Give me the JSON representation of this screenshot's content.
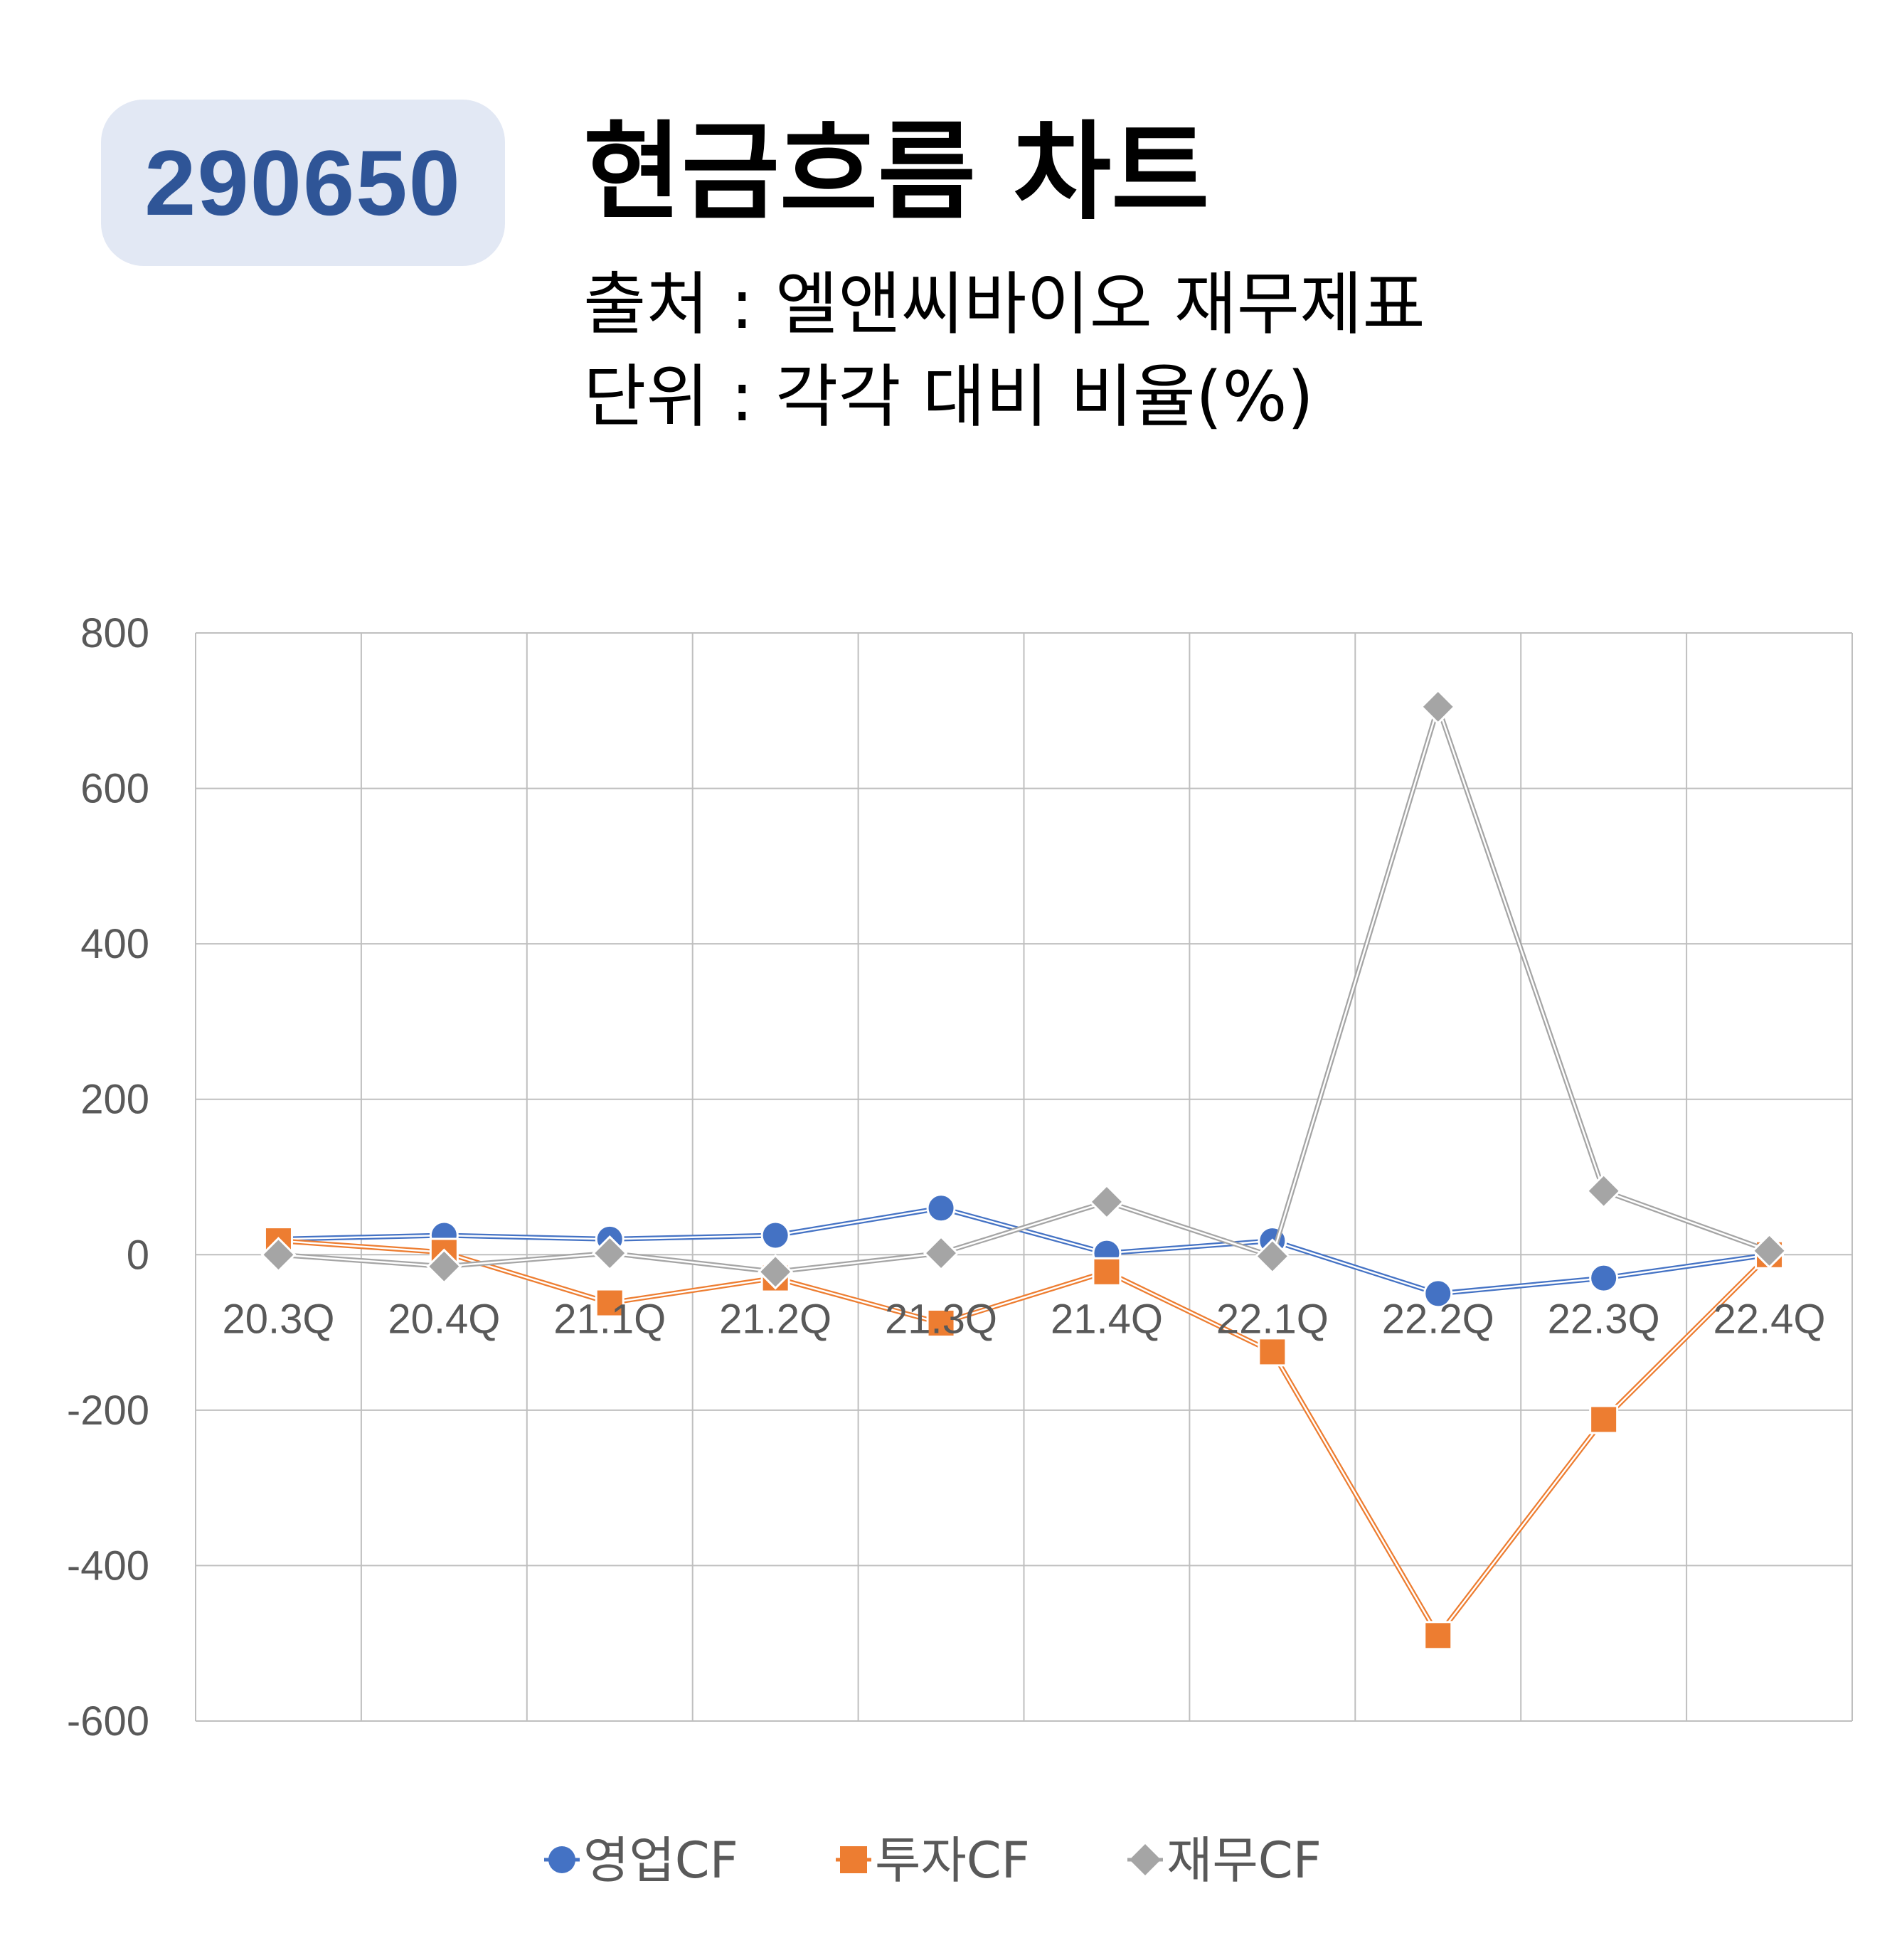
{
  "badge": {
    "code": "290650"
  },
  "header": {
    "title": "현금흐름 차트",
    "source": "출처 : 엘앤씨바이오 재무제표",
    "unit": "단위 : 각각 대비 비율(%)"
  },
  "colors": {
    "op": "#4472c4",
    "inv": "#ed7d31",
    "fin": "#a5a5a5",
    "grid": "#bfbfbf"
  },
  "chart_data": {
    "type": "line",
    "title": "현금흐름 차트",
    "categories": [
      "20.3Q",
      "20.4Q",
      "21.1Q",
      "21.2Q",
      "21.3Q",
      "21.4Q",
      "22.1Q",
      "22.2Q",
      "22.3Q",
      "22.4Q"
    ],
    "ylim": [
      -600,
      800
    ],
    "yticks": [
      800,
      600,
      400,
      200,
      0,
      -200,
      -400,
      -600
    ],
    "grid": true,
    "legend": "bottom",
    "series": [
      {
        "name": "영업CF",
        "marker": "circle",
        "values": [
          20,
          25,
          20,
          25,
          60,
          2,
          18,
          -50,
          -30,
          0
        ]
      },
      {
        "name": "투자CF",
        "marker": "square",
        "values": [
          18,
          3,
          -62,
          -30,
          -88,
          -22,
          -125,
          -490,
          -212,
          0
        ]
      },
      {
        "name": "재무CF",
        "marker": "diamond",
        "values": [
          0,
          -15,
          2,
          -22,
          2,
          68,
          -2,
          705,
          82,
          5
        ]
      }
    ]
  }
}
